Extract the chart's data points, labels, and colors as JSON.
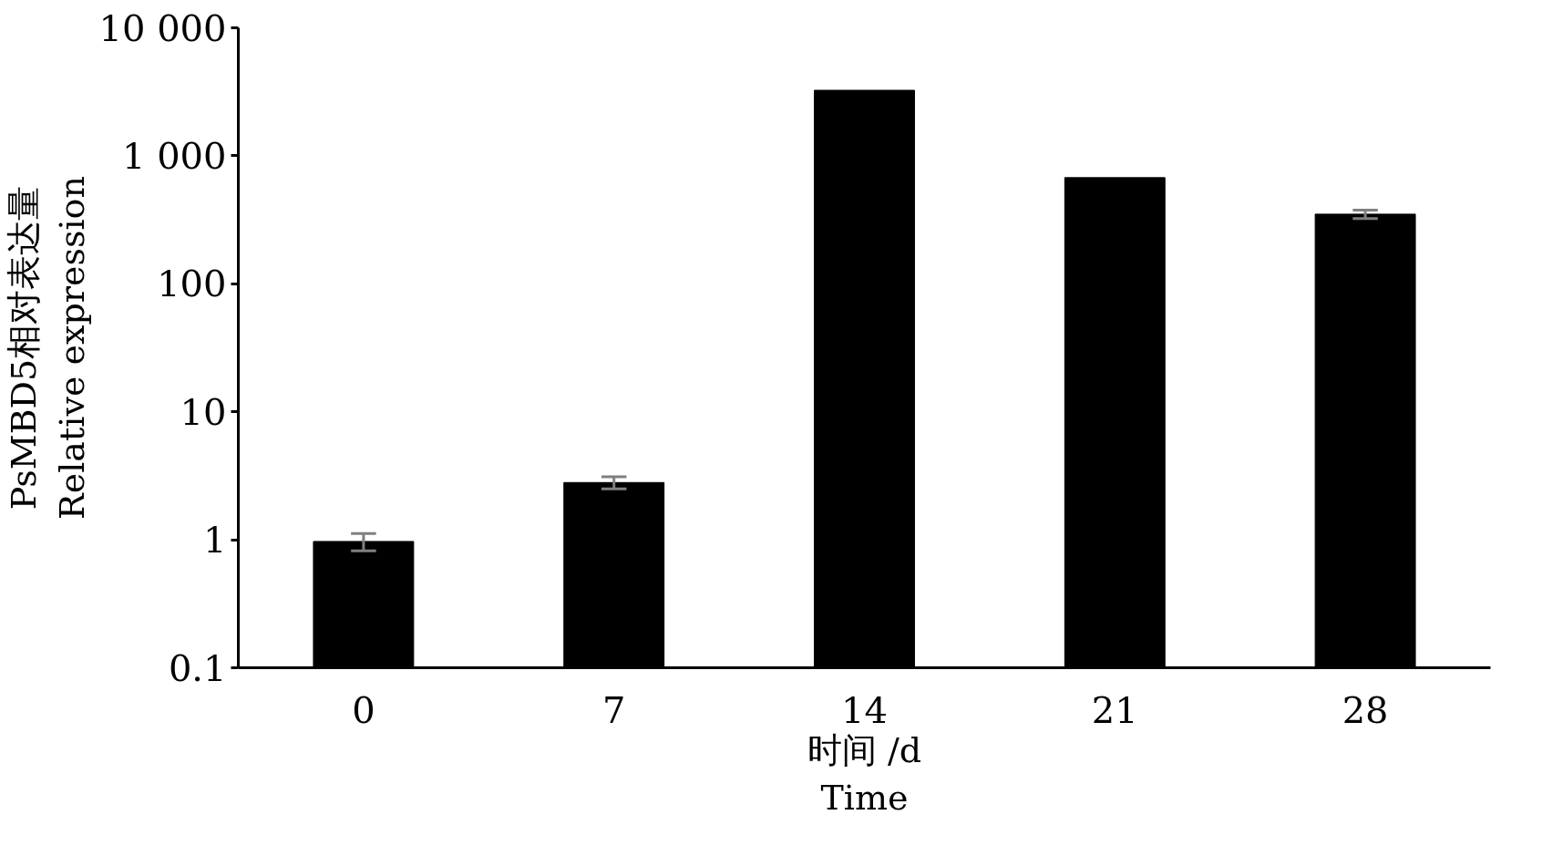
{
  "chart_data": {
    "type": "bar",
    "xlabel": "时间 /d\nTime",
    "ylabel": "PsMBD5相对表达量\nRelative expression",
    "categories": [
      "0",
      "7",
      "14",
      "21",
      "28"
    ],
    "values": [
      0.97,
      2.8,
      3250,
      675,
      350
    ],
    "errors": [
      0.15,
      0.3,
      null,
      null,
      27
    ],
    "color": "#000000",
    "log": true,
    "ylim": [
      0.1,
      10000
    ],
    "yticks": [
      0.1,
      1,
      10,
      100,
      {
        "value": 1000,
        "label": "1 000"
      },
      {
        "value": 10000,
        "label": "10 000"
      }
    ],
    "grid": false
  }
}
